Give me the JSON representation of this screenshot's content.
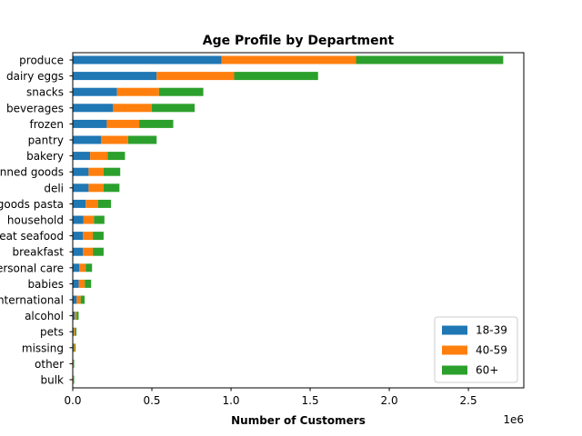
{
  "chart_data": {
    "type": "bar",
    "orientation": "horizontal",
    "stacked": true,
    "title": "Age Profile by Department",
    "xlabel": "Number of Customers",
    "ylabel": "",
    "x_offset_label": "1e6",
    "x_scale": 1000000,
    "xlim": [
      0,
      2850000
    ],
    "x_ticks": [
      0,
      500000,
      1000000,
      1500000,
      2000000,
      2500000
    ],
    "x_tick_labels": [
      "0.0",
      "0.5",
      "1.0",
      "1.5",
      "2.0",
      "2.5"
    ],
    "grid": false,
    "legend_position": "lower-right",
    "categories": [
      "produce",
      "dairy eggs",
      "snacks",
      "beverages",
      "frozen",
      "pantry",
      "bakery",
      "canned goods",
      "deli",
      "dry goods pasta",
      "household",
      "meat seafood",
      "breakfast",
      "personal care",
      "babies",
      "international",
      "alcohol",
      "pets",
      "missing",
      "other",
      "bulk"
    ],
    "series": [
      {
        "name": "18-39",
        "color": "#1f77b4",
        "values": [
          940000,
          530000,
          280000,
          255000,
          215000,
          180000,
          110000,
          100000,
          100000,
          82000,
          68000,
          65000,
          65000,
          42000,
          38000,
          25000,
          12000,
          7000,
          6000,
          3000,
          3000
        ]
      },
      {
        "name": "40-59",
        "color": "#ff7f0e",
        "values": [
          850000,
          490000,
          265000,
          245000,
          205000,
          170000,
          110000,
          95000,
          95000,
          77000,
          66000,
          62000,
          62000,
          40000,
          38000,
          25000,
          12000,
          7000,
          6000,
          3000,
          3000
        ]
      },
      {
        "name": "60+",
        "color": "#2ca02c",
        "values": [
          930000,
          530000,
          280000,
          270000,
          215000,
          180000,
          110000,
          105000,
          100000,
          83000,
          66000,
          68000,
          68000,
          40000,
          40000,
          25000,
          13000,
          9000,
          6000,
          3000,
          3000
        ]
      }
    ]
  }
}
